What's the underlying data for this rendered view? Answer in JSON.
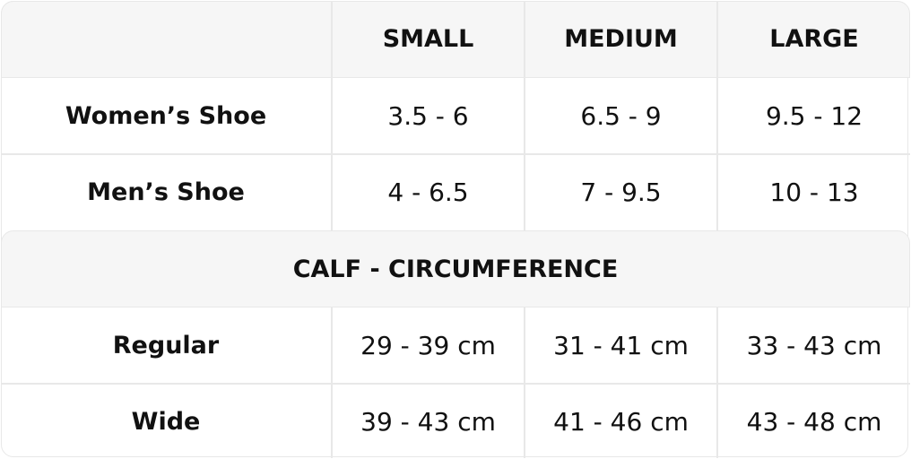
{
  "header": {
    "columns": [
      "",
      "SMALL",
      "MEDIUM",
      "LARGE"
    ]
  },
  "shoe_rows": [
    {
      "label": "Women’s Shoe",
      "values": [
        "3.5 - 6",
        "6.5 - 9",
        "9.5 - 12"
      ]
    },
    {
      "label": "Men’s Shoe",
      "values": [
        "4 - 6.5",
        "7 - 9.5",
        "10 - 13"
      ]
    }
  ],
  "calf_section": {
    "title": "CALF - CIRCUMFERENCE"
  },
  "calf_rows": [
    {
      "label": "Regular",
      "values": [
        "29 - 39 cm",
        "31 - 41 cm",
        "33 - 43 cm"
      ]
    },
    {
      "label": "Wide",
      "values": [
        "39 - 43 cm",
        "41 - 46 cm",
        "43 - 48 cm"
      ]
    }
  ],
  "colors": {
    "header_bg": "#f6f6f6",
    "border": "#e8e8e8",
    "text": "#111111"
  }
}
